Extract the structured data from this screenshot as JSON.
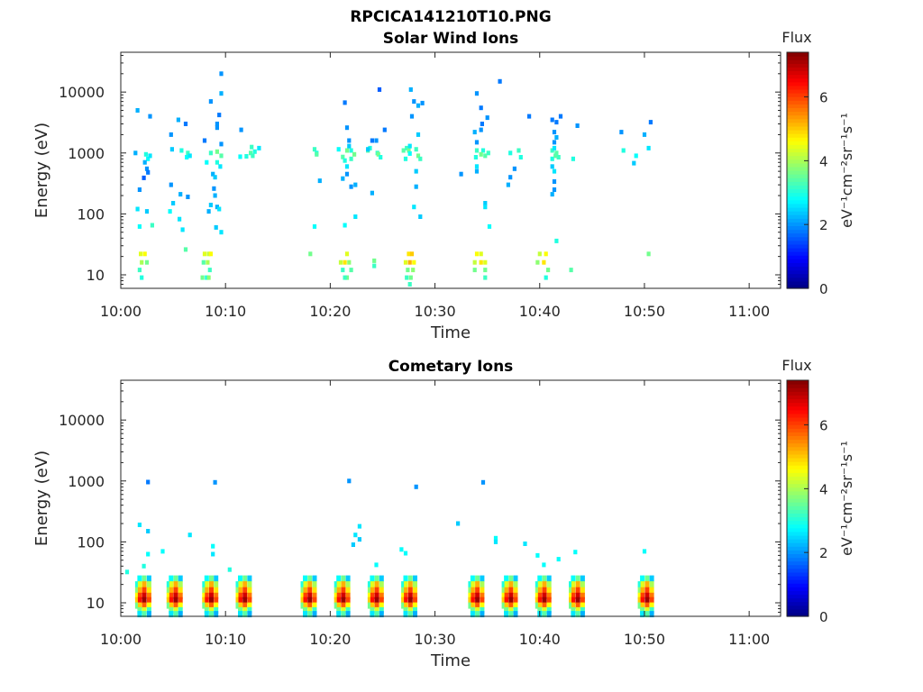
{
  "figure": {
    "title": "RPCICA141210T10.PNG"
  },
  "chart_data": [
    {
      "type": "heatmap",
      "title": "Solar Wind Ions",
      "xlabel": "Time",
      "ylabel": "Energy (eV)",
      "x_ticks": [
        "10:00",
        "10:10",
        "10:20",
        "10:30",
        "10:40",
        "10:50",
        "11:00"
      ],
      "x_range_min": [
        0,
        63
      ],
      "y_ticks": [
        "10",
        "100",
        "1000",
        "10000"
      ],
      "y_scale": "log",
      "y_range_eV": [
        6,
        45000
      ],
      "colorbar": {
        "label": "Flux",
        "unit": "eV⁻¹cm⁻²sr⁻¹s⁻¹",
        "range": [
          0,
          7.4
        ],
        "ticks": [
          "0",
          "2",
          "4",
          "6"
        ],
        "colormap": "jet"
      },
      "cells": [
        [
          1.6,
          5000,
          2.2
        ],
        [
          2.8,
          4000,
          2.0
        ],
        [
          1.4,
          1000,
          2.2
        ],
        [
          2.4,
          950,
          3.0
        ],
        [
          2.6,
          800,
          2.8
        ],
        [
          2.3,
          700,
          2.2
        ],
        [
          2.8,
          900,
          2.6
        ],
        [
          2.5,
          550,
          2.0
        ],
        [
          2.6,
          480,
          1.8
        ],
        [
          2.2,
          390,
          1.6
        ],
        [
          1.8,
          250,
          2.0
        ],
        [
          1.6,
          120,
          2.6
        ],
        [
          2.5,
          110,
          2.4
        ],
        [
          1.8,
          62,
          2.8
        ],
        [
          3.0,
          65,
          3.2
        ],
        [
          1.9,
          22,
          4.4
        ],
        [
          2.3,
          22,
          4.6
        ],
        [
          2.0,
          16,
          4.0
        ],
        [
          2.5,
          16,
          3.6
        ],
        [
          1.8,
          12,
          3.2
        ],
        [
          2.0,
          9,
          3.0
        ],
        [
          4.8,
          2000,
          2.0
        ],
        [
          5.5,
          3500,
          2.2
        ],
        [
          6.2,
          3000,
          1.8
        ],
        [
          5.8,
          1100,
          3.0
        ],
        [
          6.4,
          1000,
          3.2
        ],
        [
          6.3,
          850,
          2.8
        ],
        [
          4.9,
          1150,
          2.4
        ],
        [
          6.6,
          900,
          2.6
        ],
        [
          4.8,
          300,
          2.0
        ],
        [
          5.7,
          210,
          2.2
        ],
        [
          5.0,
          150,
          2.4
        ],
        [
          6.4,
          190,
          2.0
        ],
        [
          5.6,
          82,
          2.6
        ],
        [
          4.7,
          110,
          2.8
        ],
        [
          5.9,
          55,
          2.6
        ],
        [
          6.2,
          26,
          3.4
        ],
        [
          8.0,
          1600,
          1.8
        ],
        [
          9.2,
          3000,
          2.0
        ],
        [
          8.6,
          1000,
          3.2
        ],
        [
          9.2,
          1050,
          3.6
        ],
        [
          9.6,
          900,
          3.4
        ],
        [
          8.2,
          700,
          2.8
        ],
        [
          9.2,
          700,
          3.0
        ],
        [
          9.5,
          600,
          2.6
        ],
        [
          8.8,
          450,
          2.2
        ],
        [
          9.0,
          400,
          2.4
        ],
        [
          9.6,
          1400,
          2.0
        ],
        [
          9.2,
          2600,
          2.0
        ],
        [
          9.4,
          4200,
          1.8
        ],
        [
          8.6,
          7000,
          2.0
        ],
        [
          9.6,
          9500,
          2.2
        ],
        [
          9.6,
          20000,
          2.0
        ],
        [
          8.9,
          260,
          2.0
        ],
        [
          9.0,
          200,
          2.2
        ],
        [
          8.6,
          140,
          2.4
        ],
        [
          9.2,
          130,
          2.2
        ],
        [
          9.4,
          120,
          2.6
        ],
        [
          8.4,
          110,
          2.2
        ],
        [
          9.1,
          60,
          2.4
        ],
        [
          9.6,
          50,
          2.6
        ],
        [
          8.0,
          22,
          4.4
        ],
        [
          8.4,
          22,
          4.2
        ],
        [
          8.6,
          22,
          4.6
        ],
        [
          7.9,
          16,
          3.4
        ],
        [
          8.3,
          16,
          4.0
        ],
        [
          8.5,
          12,
          3.2
        ],
        [
          7.8,
          9,
          3.6
        ],
        [
          8.2,
          9,
          3.0
        ],
        [
          8.4,
          9,
          3.8
        ],
        [
          11.5,
          2400,
          2.0
        ],
        [
          11.4,
          870,
          2.8
        ],
        [
          12.0,
          880,
          3.0
        ],
        [
          12.4,
          1000,
          3.4
        ],
        [
          12.5,
          1250,
          3.2
        ],
        [
          12.8,
          1050,
          3.0
        ],
        [
          12.6,
          900,
          3.2
        ],
        [
          13.2,
          1200,
          2.6
        ],
        [
          18.1,
          22,
          3.6
        ],
        [
          18.5,
          1150,
          3.2
        ],
        [
          18.7,
          1000,
          3.0
        ],
        [
          18.7,
          950,
          3.4
        ],
        [
          19.0,
          350,
          2.2
        ],
        [
          18.5,
          62,
          2.8
        ],
        [
          20.8,
          1150,
          2.8
        ],
        [
          21.6,
          1100,
          3.6
        ],
        [
          21.2,
          860,
          3.4
        ],
        [
          21.4,
          750,
          3.0
        ],
        [
          21.6,
          600,
          2.6
        ],
        [
          21.6,
          450,
          2.0
        ],
        [
          21.2,
          380,
          2.2
        ],
        [
          21.8,
          1600,
          2.0
        ],
        [
          21.6,
          2600,
          2.0
        ],
        [
          21.4,
          6700,
          1.8
        ],
        [
          21.8,
          1300,
          2.4
        ],
        [
          22.0,
          1100,
          3.0
        ],
        [
          22.3,
          950,
          3.6
        ],
        [
          22.0,
          800,
          3.2
        ],
        [
          22.4,
          300,
          2.2
        ],
        [
          22.0,
          280,
          2.0
        ],
        [
          21.4,
          65,
          2.8
        ],
        [
          22.4,
          90,
          2.6
        ],
        [
          21.0,
          16,
          4.2
        ],
        [
          21.4,
          16,
          4.8
        ],
        [
          21.6,
          22,
          4.4
        ],
        [
          21.8,
          16,
          3.8
        ],
        [
          22.0,
          12,
          3.4
        ],
        [
          21.2,
          12,
          3.2
        ],
        [
          21.6,
          9,
          3.6
        ],
        [
          21.4,
          9,
          3.2
        ],
        [
          23.6,
          1100,
          3.4
        ],
        [
          24.0,
          1600,
          1.8
        ],
        [
          24.4,
          1600,
          2.0
        ],
        [
          23.8,
          1200,
          3.0
        ],
        [
          24.0,
          220,
          2.2
        ],
        [
          24.5,
          1000,
          3.2
        ],
        [
          24.6,
          950,
          3.6
        ],
        [
          24.8,
          850,
          3.0
        ],
        [
          25.2,
          2400,
          1.8
        ],
        [
          23.6,
          1150,
          2.4
        ],
        [
          24.2,
          17,
          3.6
        ],
        [
          24.2,
          14,
          3.2
        ],
        [
          24.7,
          11000,
          1.6
        ],
        [
          27.0,
          1100,
          3.4
        ],
        [
          27.3,
          1200,
          3.2
        ],
        [
          27.5,
          1100,
          3.6
        ],
        [
          27.6,
          980,
          2.8
        ],
        [
          27.2,
          800,
          3.0
        ],
        [
          27.7,
          11000,
          2.2
        ],
        [
          28.0,
          7000,
          2.0
        ],
        [
          28.4,
          6000,
          2.2
        ],
        [
          27.8,
          4000,
          2.0
        ],
        [
          28.4,
          2000,
          2.4
        ],
        [
          27.6,
          1300,
          2.6
        ],
        [
          28.2,
          1150,
          3.2
        ],
        [
          28.4,
          900,
          3.6
        ],
        [
          28.6,
          800,
          3.2
        ],
        [
          28.2,
          500,
          2.4
        ],
        [
          28.2,
          280,
          2.2
        ],
        [
          28.0,
          130,
          2.6
        ],
        [
          28.6,
          90,
          2.4
        ],
        [
          27.5,
          22,
          4.8
        ],
        [
          27.8,
          22,
          5.0
        ],
        [
          27.2,
          16,
          4.4
        ],
        [
          27.6,
          16,
          5.2
        ],
        [
          28.0,
          16,
          4.6
        ],
        [
          27.4,
          12,
          3.6
        ],
        [
          27.9,
          12,
          3.8
        ],
        [
          27.3,
          9,
          3.2
        ],
        [
          27.7,
          9,
          3.6
        ],
        [
          27.6,
          7,
          3.2
        ],
        [
          28.8,
          6600,
          2.0
        ],
        [
          32.5,
          450,
          2.0
        ],
        [
          34.0,
          9500,
          2.0
        ],
        [
          34.4,
          5500,
          1.8
        ],
        [
          33.8,
          2200,
          2.2
        ],
        [
          34.4,
          2400,
          2.0
        ],
        [
          34.0,
          1500,
          2.0
        ],
        [
          34.5,
          3000,
          1.8
        ],
        [
          35.0,
          3800,
          2.0
        ],
        [
          34.0,
          1100,
          3.2
        ],
        [
          34.6,
          1100,
          3.0
        ],
        [
          34.4,
          950,
          3.6
        ],
        [
          34.8,
          900,
          3.4
        ],
        [
          35.1,
          1000,
          3.2
        ],
        [
          33.9,
          850,
          3.0
        ],
        [
          34.0,
          600,
          2.6
        ],
        [
          34.0,
          500,
          2.2
        ],
        [
          34.8,
          150,
          2.4
        ],
        [
          34.8,
          130,
          2.6
        ],
        [
          35.2,
          62,
          2.8
        ],
        [
          36.2,
          15000,
          1.8
        ],
        [
          34.0,
          22,
          4.6
        ],
        [
          34.4,
          22,
          4.4
        ],
        [
          33.8,
          16,
          4.2
        ],
        [
          34.4,
          16,
          4.8
        ],
        [
          34.8,
          16,
          4.4
        ],
        [
          34.8,
          12,
          3.6
        ],
        [
          34.8,
          9,
          3.2
        ],
        [
          33.8,
          12,
          3.6
        ],
        [
          37.2,
          1000,
          3.0
        ],
        [
          37.6,
          550,
          2.0
        ],
        [
          38.0,
          1100,
          3.2
        ],
        [
          38.2,
          850,
          3.0
        ],
        [
          37.0,
          300,
          2.2
        ],
        [
          37.2,
          400,
          2.0
        ],
        [
          39.0,
          4000,
          1.8
        ],
        [
          40.0,
          22,
          4.2
        ],
        [
          40.4,
          16,
          4.8
        ],
        [
          40.6,
          22,
          4.6
        ],
        [
          40.8,
          12,
          3.6
        ],
        [
          39.8,
          16,
          3.8
        ],
        [
          40.6,
          9,
          3.0
        ],
        [
          41.2,
          3500,
          1.8
        ],
        [
          41.4,
          2200,
          2.0
        ],
        [
          41.4,
          1500,
          2.0
        ],
        [
          41.6,
          1800,
          2.2
        ],
        [
          41.2,
          1100,
          3.2
        ],
        [
          41.6,
          1000,
          3.4
        ],
        [
          41.2,
          800,
          3.0
        ],
        [
          41.8,
          850,
          3.2
        ],
        [
          41.2,
          600,
          2.4
        ],
        [
          41.4,
          500,
          2.6
        ],
        [
          41.4,
          340,
          2.0
        ],
        [
          41.4,
          250,
          2.0
        ],
        [
          41.2,
          210,
          2.2
        ],
        [
          41.6,
          36,
          3.0
        ],
        [
          41.6,
          3200,
          1.8
        ],
        [
          41.4,
          1200,
          2.6
        ],
        [
          41.5,
          900,
          3.4
        ],
        [
          42.0,
          4000,
          1.8
        ],
        [
          43.6,
          2800,
          2.0
        ],
        [
          43.2,
          800,
          3.0
        ],
        [
          43.0,
          12,
          3.4
        ],
        [
          47.8,
          2200,
          2.0
        ],
        [
          48.0,
          1100,
          3.0
        ],
        [
          49.2,
          900,
          2.8
        ],
        [
          49.0,
          680,
          2.4
        ],
        [
          50.0,
          2000,
          2.2
        ],
        [
          50.6,
          3200,
          1.8
        ],
        [
          50.4,
          1200,
          2.6
        ],
        [
          50.4,
          22,
          3.6
        ]
      ]
    },
    {
      "type": "heatmap",
      "title": "Cometary Ions",
      "xlabel": "Time",
      "ylabel": "Energy (eV)",
      "x_ticks": [
        "10:00",
        "10:10",
        "10:20",
        "10:30",
        "10:40",
        "10:50",
        "11:00"
      ],
      "x_range_min": [
        0,
        63
      ],
      "y_ticks": [
        "10",
        "100",
        "1000",
        "10000"
      ],
      "y_scale": "log",
      "y_range_eV": [
        6,
        45000
      ],
      "colorbar": {
        "label": "Flux",
        "unit": "eV⁻¹cm⁻²sr⁻¹s⁻¹",
        "range": [
          0,
          7.4
        ],
        "ticks": [
          "0",
          "2",
          "4",
          "6"
        ],
        "colormap": "jet"
      },
      "cells": [
        [
          2.6,
          960,
          1.8
        ],
        [
          9.0,
          950,
          2.0
        ],
        [
          21.8,
          1000,
          2.0
        ],
        [
          28.2,
          800,
          2.0
        ],
        [
          34.6,
          950,
          2.0
        ],
        [
          1.8,
          190,
          2.6
        ],
        [
          2.6,
          150,
          2.4
        ],
        [
          2.6,
          63,
          2.8
        ],
        [
          4.0,
          70,
          2.8
        ],
        [
          6.6,
          130,
          2.6
        ],
        [
          8.8,
          85,
          2.8
        ],
        [
          8.8,
          63,
          2.6
        ],
        [
          10.4,
          35,
          3.0
        ],
        [
          0.6,
          32,
          3.0
        ],
        [
          2.2,
          40,
          3.0
        ],
        [
          22.8,
          180,
          2.6
        ],
        [
          22.4,
          130,
          2.6
        ],
        [
          22.8,
          110,
          2.4
        ],
        [
          22.2,
          90,
          2.4
        ],
        [
          24.4,
          42,
          2.8
        ],
        [
          26.8,
          75,
          2.8
        ],
        [
          27.2,
          65,
          2.8
        ],
        [
          32.2,
          200,
          2.4
        ],
        [
          35.8,
          115,
          2.8
        ],
        [
          35.8,
          100,
          2.6
        ],
        [
          38.6,
          93,
          2.6
        ],
        [
          39.8,
          60,
          2.8
        ],
        [
          40.4,
          42,
          2.8
        ],
        [
          41.8,
          52,
          2.8
        ],
        [
          43.4,
          68,
          2.8
        ],
        [
          50.0,
          70,
          2.8
        ]
      ],
      "bursts": [
        1.8,
        4.8,
        8.2,
        11.4,
        17.6,
        20.8,
        24.0,
        27.2,
        33.6,
        36.8,
        40.0,
        43.2,
        49.8
      ]
    }
  ]
}
